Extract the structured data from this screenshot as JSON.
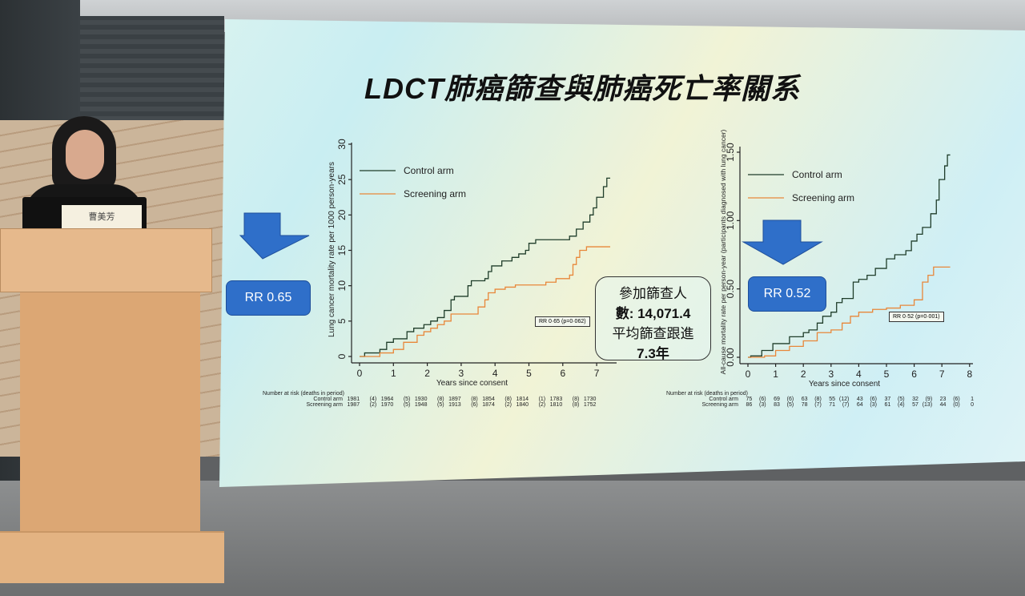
{
  "slide": {
    "title": "LDCT肺癌篩查與肺癌死亡率關系",
    "left_rr_label": "RR 0.65",
    "right_rr_label": "RR 0.52",
    "note_lines": [
      "參加篩查人",
      "數: 14,071.4",
      "平均篩查跟進",
      "7.3年"
    ],
    "accent": "#2f6fc9"
  },
  "speaker": {
    "name_card": "曹美芳"
  },
  "chart_data": [
    {
      "type": "line",
      "step": true,
      "ylabel": "Lung cancer mortality rate per 1000 person-years",
      "xlabel": "Years since consent",
      "xlim": [
        0,
        7.5
      ],
      "ylim": [
        0,
        30
      ],
      "xticks": [
        0,
        1,
        2,
        3,
        4,
        5,
        6,
        7
      ],
      "yticks": [
        0,
        5,
        10,
        15,
        20,
        25,
        30
      ],
      "legend_position": "top-left",
      "annotation": "RR 0·65 (p=0·062)",
      "series": [
        {
          "name": "Control arm",
          "color": "#1f3d2a",
          "x": [
            0,
            0.15,
            0.6,
            0.8,
            1,
            1.4,
            1.6,
            1.9,
            2.1,
            2.3,
            2.5,
            2.7,
            2.8,
            3.2,
            3.3,
            3.7,
            3.8,
            3.9,
            4.2,
            4.5,
            4.7,
            4.9,
            5,
            5.2,
            6.1,
            6.2,
            6.4,
            6.6,
            6.8,
            6.9,
            7.0,
            7.2,
            7.3,
            7.4
          ],
          "y": [
            0,
            0.5,
            1,
            2,
            2.5,
            3.5,
            4,
            4.5,
            5,
            5.5,
            6.5,
            8,
            8.5,
            10,
            10.7,
            11,
            12,
            12.8,
            13.5,
            14,
            14.5,
            15,
            16,
            16.5,
            16.5,
            17,
            18,
            19,
            20,
            21,
            22.5,
            24,
            25.2,
            25.2
          ]
        },
        {
          "name": "Screening arm",
          "color": "#e8873a",
          "x": [
            0,
            0.6,
            1,
            1.3,
            1.7,
            1.9,
            2.1,
            2.3,
            2.5,
            2.7,
            3.3,
            3.5,
            3.7,
            3.8,
            4,
            4.3,
            4.6,
            5.5,
            5.8,
            6.2,
            6.3,
            6.4,
            6.5,
            6.7,
            7.4
          ],
          "y": [
            0,
            0.5,
            1,
            2,
            3,
            3.5,
            4,
            4.5,
            5,
            6,
            6,
            7,
            8,
            9,
            9.5,
            9.8,
            10.1,
            10.5,
            11,
            11.5,
            13,
            14,
            15,
            15.5,
            15.5
          ]
        }
      ],
      "risk_table": {
        "title": "Number at risk (deaths in period)",
        "rows": [
          {
            "label": "Control arm",
            "values": [
              "1981",
              "(4)",
              "1964",
              "(5)",
              "1930",
              "(8)",
              "1897",
              "(8)",
              "1854",
              "(8)",
              "1814",
              "(1)",
              "1783",
              "(8)",
              "1730"
            ]
          },
          {
            "label": "Screening arm",
            "values": [
              "1987",
              "(2)",
              "1970",
              "(5)",
              "1948",
              "(5)",
              "1913",
              "(6)",
              "1874",
              "(2)",
              "1840",
              "(2)",
              "1810",
              "(8)",
              "1752"
            ]
          }
        ]
      }
    },
    {
      "type": "line",
      "step": true,
      "ylabel": "All-cause mortality rate per person-year (participants diagnosed with lung cancer)",
      "xlabel": "Years since consent",
      "xlim": [
        0,
        8
      ],
      "ylim": [
        0,
        1.5
      ],
      "xticks": [
        0,
        1,
        2,
        3,
        4,
        5,
        6,
        7,
        8
      ],
      "yticks": [
        "0.00",
        "0.50",
        "1.00",
        "1.50"
      ],
      "legend_position": "top-left",
      "annotation": "RR 0·52 (p=0·001)",
      "series": [
        {
          "name": "Control arm",
          "color": "#1f3d2a",
          "x": [
            0,
            0.1,
            0.5,
            0.9,
            1.5,
            2,
            2.2,
            2.5,
            2.7,
            3,
            3.2,
            3.4,
            3.8,
            4,
            4.3,
            4.6,
            5,
            5.3,
            5.7,
            5.9,
            6.1,
            6.3,
            6.6,
            6.8,
            6.9,
            7.1,
            7.2,
            7.3
          ],
          "y": [
            0,
            0.01,
            0.05,
            0.1,
            0.15,
            0.18,
            0.2,
            0.25,
            0.3,
            0.33,
            0.4,
            0.43,
            0.55,
            0.57,
            0.6,
            0.65,
            0.72,
            0.75,
            0.78,
            0.85,
            0.9,
            0.95,
            1.05,
            1.15,
            1.3,
            1.4,
            1.48,
            1.48
          ]
        },
        {
          "name": "Screening arm",
          "color": "#e8873a",
          "x": [
            0,
            0.6,
            1,
            1.5,
            2,
            2.5,
            3,
            3.4,
            3.7,
            4,
            4.5,
            5,
            5.5,
            6,
            6.3,
            6.5,
            6.7,
            7.3
          ],
          "y": [
            0,
            0.01,
            0.05,
            0.08,
            0.12,
            0.18,
            0.2,
            0.25,
            0.3,
            0.33,
            0.35,
            0.36,
            0.38,
            0.42,
            0.55,
            0.6,
            0.66,
            0.66
          ]
        }
      ],
      "risk_table": {
        "title": "Number at risk (deaths in period)",
        "rows": [
          {
            "label": "Control arm",
            "values": [
              "75",
              "(6)",
              "69",
              "(6)",
              "63",
              "(8)",
              "55",
              "(12)",
              "43",
              "(6)",
              "37",
              "(5)",
              "32",
              "(9)",
              "23",
              "(6)",
              "1"
            ]
          },
          {
            "label": "Screening arm",
            "values": [
              "86",
              "(3)",
              "83",
              "(5)",
              "78",
              "(7)",
              "71",
              "(7)",
              "64",
              "(3)",
              "61",
              "(4)",
              "57",
              "(13)",
              "44",
              "(0)",
              "0"
            ]
          }
        ]
      }
    }
  ]
}
